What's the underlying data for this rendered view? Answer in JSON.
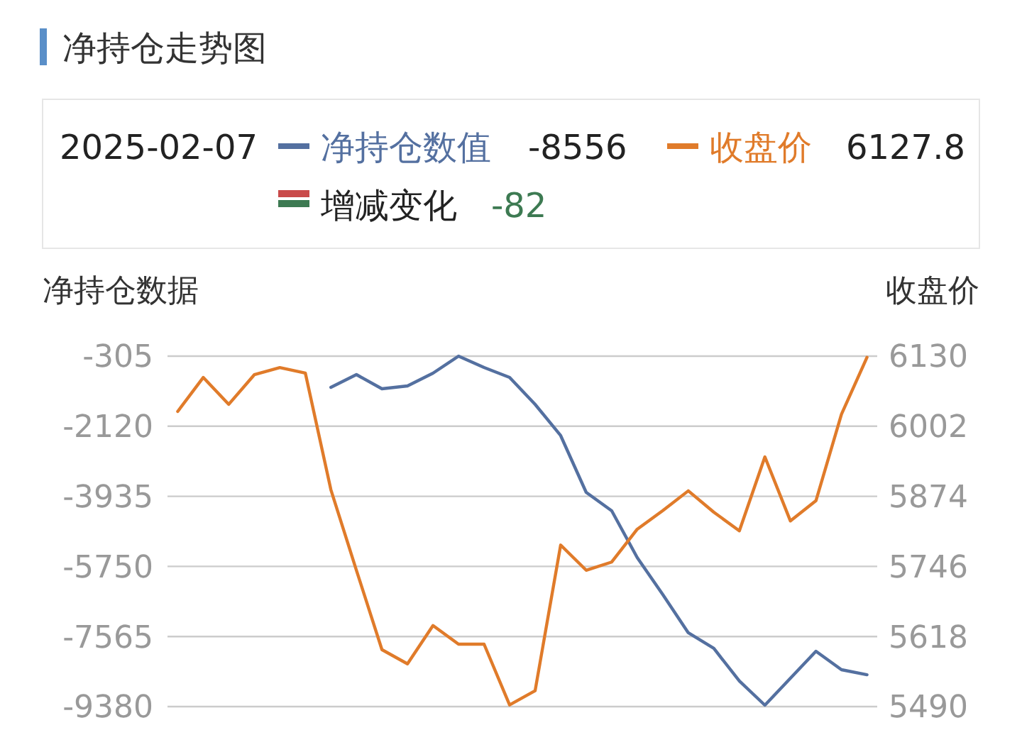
{
  "chart_data": {
    "type": "line",
    "title": "净持仓走势图",
    "ylabel": "净持仓数据",
    "y2label": "收盘价",
    "categories": [
      null,
      null,
      null,
      null,
      null,
      null,
      null,
      null,
      null,
      null,
      null,
      null,
      null,
      null,
      null,
      null,
      null,
      null,
      null,
      null,
      null,
      null,
      null,
      null,
      null,
      null,
      null,
      null
    ],
    "series": [
      {
        "name": "净持仓数值",
        "color": "#5470a0",
        "values": [
          null,
          null,
          null,
          null,
          null,
          null,
          -1113,
          -783,
          -1150,
          -1077,
          -746,
          -305,
          -599,
          -856,
          -1554,
          -2362,
          -3832,
          -4310,
          -5522,
          -6477,
          -7469,
          -7873,
          -8718,
          -9343,
          -8645,
          -7947,
          -8425,
          -8556
        ]
      },
      {
        "name": "收盘价",
        "color": "#e07b2a",
        "axis": "y2",
        "values": [
          6029,
          6091,
          6042,
          6096,
          6109,
          6099,
          5886,
          5739,
          5594,
          5568,
          5638,
          5604,
          5604,
          5493,
          5519,
          5785,
          5739,
          5754,
          5814,
          5848,
          5884,
          5845,
          5811,
          5946,
          5829,
          5866,
          6024,
          6127.8
        ]
      }
    ],
    "ylim": [
      -9380,
      -305
    ],
    "yticks": [
      -9380,
      -7565,
      -5750,
      -3935,
      -2120,
      -305
    ],
    "y2lim": [
      5490,
      6130
    ],
    "y2ticks": [
      5490,
      5618,
      5746,
      5874,
      6002,
      6130
    ],
    "grid": "y",
    "legend": "top",
    "annotations": [
      "2025-02-07",
      "-8556",
      "6127.8",
      "增减变化",
      "-82"
    ]
  }
}
